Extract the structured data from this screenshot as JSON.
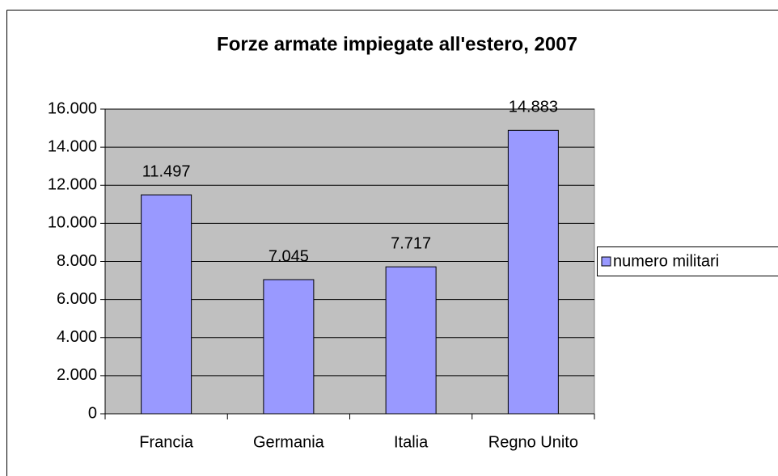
{
  "chart_data": {
    "type": "bar",
    "title": "Forze armate impiegate all'estero, 2007",
    "categories": [
      "Francia",
      "Germania",
      "Italia",
      "Regno Unito"
    ],
    "series": [
      {
        "name": "numero militari",
        "color": "#9999ff",
        "values": [
          11497,
          7045,
          7717,
          14883
        ],
        "value_labels": [
          "11.497",
          "7.045",
          "7.717",
          "14.883"
        ]
      }
    ],
    "ylim": [
      0,
      16000
    ],
    "yticks": [
      0,
      {
        "value": 2000,
        "label": "2.000"
      },
      {
        "value": 4000,
        "label": "4.000"
      },
      {
        "value": 6000,
        "label": "6.000"
      },
      {
        "value": 8000,
        "label": "8.000"
      },
      {
        "value": 10000,
        "label": "10.000"
      },
      {
        "value": 12000,
        "label": "12.000"
      },
      {
        "value": 14000,
        "label": "14.000"
      },
      {
        "value": 16000,
        "label": "16.000"
      }
    ],
    "grid": true,
    "legend": "right",
    "plot_background": "#c0c0c0"
  }
}
